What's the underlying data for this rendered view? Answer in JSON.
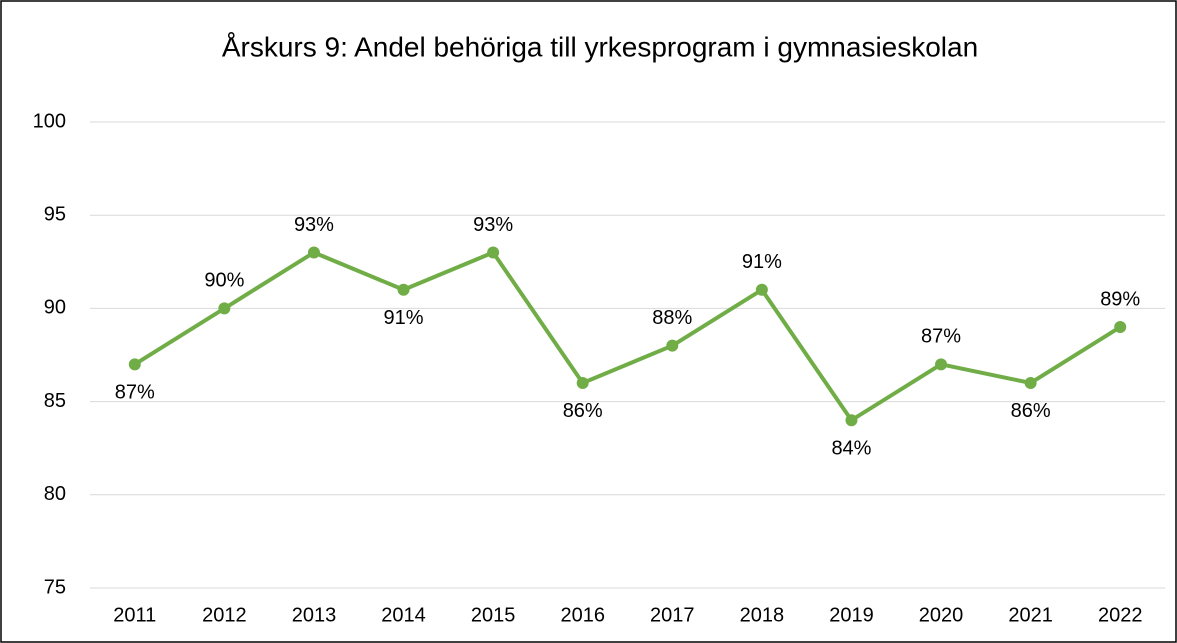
{
  "chart_data": {
    "type": "line",
    "title": "Årskurs 9: Andel behöriga till yrkesprogram i gymnasieskolan",
    "categories": [
      "2011",
      "2012",
      "2013",
      "2014",
      "2015",
      "2016",
      "2017",
      "2018",
      "2019",
      "2020",
      "2021",
      "2022"
    ],
    "series": [
      {
        "name": "Andel behöriga",
        "color": "#70ad47",
        "values": [
          87,
          90,
          93,
          91,
          93,
          86,
          88,
          91,
          84,
          87,
          86,
          89
        ],
        "value_labels": [
          "87%",
          "90%",
          "93%",
          "91%",
          "93%",
          "86%",
          "88%",
          "91%",
          "84%",
          "87%",
          "86%",
          "89%"
        ]
      }
    ],
    "ylim": [
      75,
      100
    ],
    "yticks": [
      75,
      80,
      85,
      90,
      95,
      100
    ],
    "grid": true
  }
}
